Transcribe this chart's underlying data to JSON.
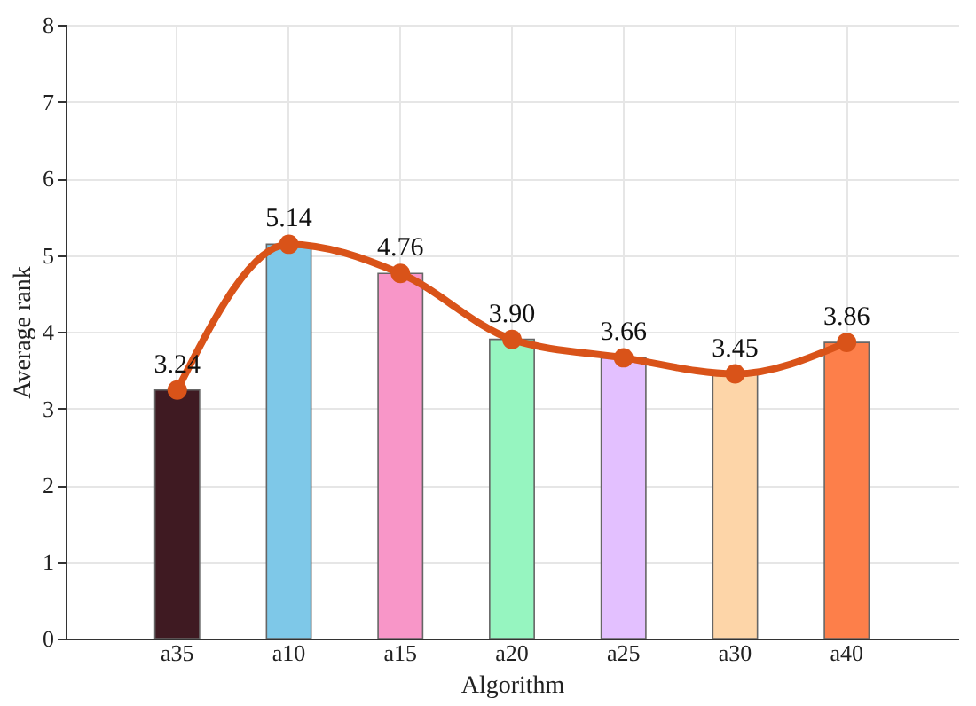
{
  "chart_data": {
    "type": "bar",
    "xlabel": "Algorithm",
    "ylabel": "Average rank",
    "categories": [
      "a35",
      "a10",
      "a15",
      "a20",
      "a25",
      "a30",
      "a40"
    ],
    "series": [
      {
        "colors": [
          "#3f1a22",
          "#7ec8e8",
          "#f896c8",
          "#96f5c0",
          "#e3c0ff",
          "#fdd5a8",
          "#fd7f4a"
        ],
        "values": [
          3.24,
          5.14,
          4.76,
          3.9,
          3.66,
          3.45,
          3.86
        ]
      },
      {
        "type": "line",
        "color": "#d95319",
        "values": [
          3.24,
          5.14,
          4.76,
          3.9,
          3.66,
          3.45,
          3.86
        ]
      }
    ],
    "value_labels": [
      "3.24",
      "5.14",
      "4.76",
      "3.90",
      "3.66",
      "3.45",
      "3.86"
    ],
    "ylim": [
      0,
      8
    ],
    "yticks": [
      0,
      1,
      2,
      3,
      4,
      5,
      6,
      7,
      8
    ],
    "grid": true,
    "marker": "circle",
    "line_style": "solid"
  }
}
